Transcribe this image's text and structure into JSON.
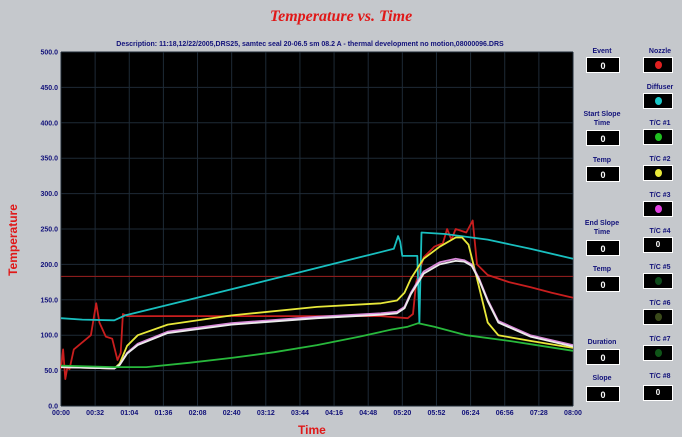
{
  "title": "Temperature vs. Time",
  "description": "Description:  11:18,12/22/2005,DRS25, samtec seal 20-06.5 sm 08.2 A - thermal development no motion,08000096.DRS",
  "chart_data": {
    "type": "line",
    "title": "Temperature vs. Time",
    "xlabel": "Time",
    "ylabel": "Temperature",
    "ylim": [
      0,
      500
    ],
    "xlim_seconds": [
      0,
      480
    ],
    "y_ticks": [
      "0.0",
      "50.0",
      "100.0",
      "150.0",
      "200.0",
      "250.0",
      "300.0",
      "350.0",
      "400.0",
      "450.0",
      "500.0"
    ],
    "x_ticks": [
      "00:00",
      "00:32",
      "01:04",
      "01:36",
      "02:08",
      "02:40",
      "03:12",
      "03:44",
      "04:16",
      "04:48",
      "05:20",
      "05:52",
      "06:24",
      "06:56",
      "07:28",
      "08:00"
    ],
    "grid": true,
    "reference_line": 183,
    "series": [
      {
        "color": "#c81e1e",
        "points": [
          [
            0,
            53
          ],
          [
            2,
            80
          ],
          [
            4,
            38
          ],
          [
            6,
            55
          ],
          [
            8,
            52
          ],
          [
            12,
            80
          ],
          [
            28,
            100
          ],
          [
            33,
            145
          ],
          [
            36,
            118
          ],
          [
            42,
            98
          ],
          [
            48,
            95
          ],
          [
            53,
            65
          ],
          [
            56,
            75
          ],
          [
            58,
            130
          ],
          [
            62,
            127
          ],
          [
            80,
            127
          ],
          [
            120,
            127
          ],
          [
            200,
            127
          ],
          [
            300,
            127
          ],
          [
            325,
            124
          ],
          [
            330,
            130
          ],
          [
            333,
            175
          ],
          [
            340,
            210
          ],
          [
            350,
            225
          ],
          [
            358,
            230
          ],
          [
            362,
            250
          ],
          [
            366,
            235
          ],
          [
            370,
            250
          ],
          [
            380,
            245
          ],
          [
            386,
            262
          ],
          [
            390,
            200
          ],
          [
            400,
            185
          ],
          [
            420,
            175
          ],
          [
            440,
            168
          ],
          [
            460,
            160
          ],
          [
            480,
            153
          ]
        ]
      },
      {
        "color": "#19bfbf",
        "points": [
          [
            0,
            124
          ],
          [
            20,
            122
          ],
          [
            50,
            121
          ],
          [
            60,
            128
          ],
          [
            120,
            150
          ],
          [
            200,
            180
          ],
          [
            280,
            210
          ],
          [
            312,
            222
          ],
          [
            316,
            240
          ],
          [
            318,
            232
          ],
          [
            320,
            212
          ],
          [
            334,
            212
          ],
          [
            336,
            118
          ],
          [
            338,
            245
          ],
          [
            360,
            243
          ],
          [
            400,
            235
          ],
          [
            440,
            222
          ],
          [
            480,
            208
          ]
        ]
      },
      {
        "color": "#e8e83a",
        "points": [
          [
            0,
            55
          ],
          [
            50,
            53
          ],
          [
            55,
            60
          ],
          [
            62,
            85
          ],
          [
            72,
            100
          ],
          [
            100,
            115
          ],
          [
            160,
            128
          ],
          [
            240,
            140
          ],
          [
            300,
            145
          ],
          [
            315,
            149
          ],
          [
            322,
            160
          ],
          [
            328,
            180
          ],
          [
            340,
            208
          ],
          [
            355,
            225
          ],
          [
            370,
            238
          ],
          [
            376,
            238
          ],
          [
            382,
            228
          ],
          [
            390,
            180
          ],
          [
            400,
            118
          ],
          [
            410,
            100
          ],
          [
            440,
            92
          ],
          [
            480,
            82
          ]
        ]
      },
      {
        "color": "#d98ad9",
        "points": [
          [
            0,
            55
          ],
          [
            50,
            53
          ],
          [
            55,
            58
          ],
          [
            62,
            75
          ],
          [
            72,
            88
          ],
          [
            100,
            105
          ],
          [
            160,
            117
          ],
          [
            240,
            126
          ],
          [
            300,
            131
          ],
          [
            315,
            133
          ],
          [
            322,
            140
          ],
          [
            328,
            160
          ],
          [
            340,
            190
          ],
          [
            355,
            203
          ],
          [
            370,
            208
          ],
          [
            378,
            206
          ],
          [
            385,
            200
          ],
          [
            392,
            180
          ],
          [
            400,
            150
          ],
          [
            410,
            120
          ],
          [
            440,
            100
          ],
          [
            480,
            86
          ]
        ]
      },
      {
        "color": "#ececec",
        "points": [
          [
            0,
            55
          ],
          [
            50,
            53
          ],
          [
            55,
            58
          ],
          [
            62,
            74
          ],
          [
            72,
            86
          ],
          [
            100,
            103
          ],
          [
            160,
            115
          ],
          [
            240,
            124
          ],
          [
            300,
            129
          ],
          [
            315,
            131
          ],
          [
            322,
            138
          ],
          [
            328,
            158
          ],
          [
            340,
            187
          ],
          [
            355,
            200
          ],
          [
            370,
            205
          ],
          [
            378,
            204
          ],
          [
            385,
            198
          ],
          [
            392,
            178
          ],
          [
            400,
            148
          ],
          [
            410,
            118
          ],
          [
            440,
            98
          ],
          [
            480,
            84
          ]
        ]
      },
      {
        "color": "#28b83c",
        "points": [
          [
            0,
            57
          ],
          [
            50,
            55
          ],
          [
            80,
            55
          ],
          [
            120,
            61
          ],
          [
            160,
            68
          ],
          [
            200,
            76
          ],
          [
            240,
            86
          ],
          [
            280,
            98
          ],
          [
            310,
            108
          ],
          [
            325,
            112
          ],
          [
            335,
            117
          ],
          [
            350,
            112
          ],
          [
            380,
            100
          ],
          [
            420,
            92
          ],
          [
            450,
            85
          ],
          [
            480,
            78
          ]
        ]
      }
    ]
  },
  "side_panel": {
    "event_label": "Event",
    "event_value": "0",
    "start_slope_label": "Start Slope Time",
    "start_slope_value": "0",
    "temp1_label": "Temp",
    "temp1_value": "0",
    "end_slope_label": "End Slope Time",
    "end_slope_value": "0",
    "temp2_label": "Temp",
    "temp2_value": "0",
    "duration_label": "Duration",
    "duration_value": "0",
    "slope_label": "Slope",
    "slope_value": "0",
    "nozzle_label": "Nozzle",
    "nozzle_color": "#e02020",
    "diffuser_label": "Diffuser",
    "diffuser_color": "#19c8c8",
    "tc1_label": "T/C #1",
    "tc1_color": "#20c020",
    "tc2_label": "T/C #2",
    "tc2_color": "#e8e83a",
    "tc3_label": "T/C #3",
    "tc3_color": "#e040e0",
    "tc4_label": "T/C #4",
    "tc4_value": "0",
    "tc5_label": "T/C #5",
    "tc5_color": "#0d4a1a",
    "tc6_label": "T/C #6",
    "tc6_color": "#3a4a1a",
    "tc7_label": "T/C #7",
    "tc7_color": "#0f5518",
    "tc8_label": "T/C #8",
    "tc8_value": "0"
  }
}
